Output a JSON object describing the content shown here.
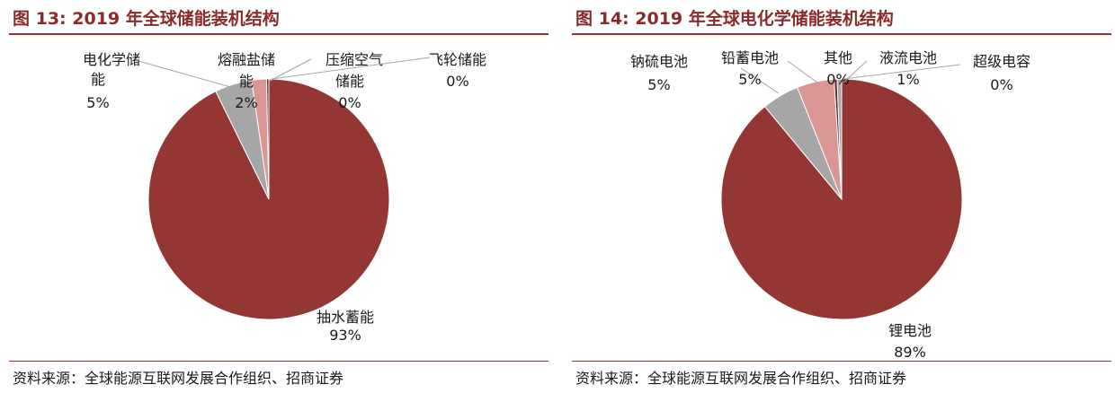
{
  "chart_data": [
    {
      "type": "pie",
      "title": "图 13:  2019 年全球储能装机结构",
      "source": "资料来源：全球能源互联网发展合作组织、招商证券",
      "colors": [
        "#943634",
        "#a6a6a6",
        "#d99694",
        "#632523"
      ],
      "series": [
        {
          "values": [
            93,
            5,
            2,
            0,
            0
          ]
        }
      ],
      "slices": [
        {
          "name": "抽水蓄能",
          "value": 93,
          "label": "93%",
          "color": "#943634"
        },
        {
          "name": "电化学储能",
          "value": 5,
          "label": "5%",
          "color": "#a6a6a6"
        },
        {
          "name": "熔融盐储能",
          "value": 2,
          "label": "2%",
          "color": "#d99694"
        },
        {
          "name": "压缩空气储能",
          "value": 0.3,
          "label": "0%",
          "color": "#632523"
        },
        {
          "name": "飞轮储能",
          "value": 0,
          "label": "0%",
          "color": "#8fb4e3"
        }
      ]
    },
    {
      "type": "pie",
      "title": "图 14:  2019 年全球电化学储能装机结构",
      "source": "资料来源：全球能源互联网发展合作组织、招商证券",
      "colors": [
        "#943634",
        "#a6a6a6",
        "#d99694",
        "#632523",
        "#a6a6a6"
      ],
      "series": [
        {
          "values": [
            89,
            5,
            5,
            0,
            1,
            0
          ]
        }
      ],
      "slices": [
        {
          "name": "锂电池",
          "value": 89,
          "label": "89%",
          "color": "#943634"
        },
        {
          "name": "钠硫电池",
          "value": 5,
          "label": "5%",
          "color": "#a6a6a6"
        },
        {
          "name": "铅蓄电池",
          "value": 5,
          "label": "5%",
          "color": "#d99694"
        },
        {
          "name": "其他",
          "value": 0.4,
          "label": "0%",
          "color": "#632523"
        },
        {
          "name": "液流电池",
          "value": 0.6,
          "label": "1%",
          "color": "#a6a6a6"
        },
        {
          "name": "超级电容",
          "value": 0,
          "label": "0%",
          "color": "#8fb4e3"
        }
      ]
    }
  ]
}
